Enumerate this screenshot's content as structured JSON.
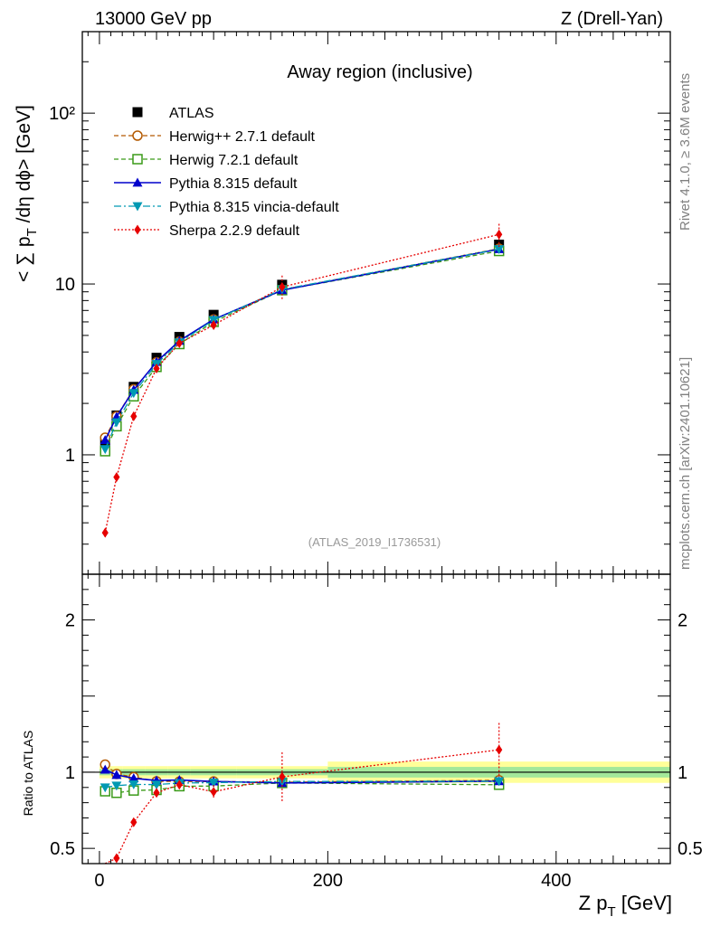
{
  "header": {
    "left": "13000 GeV pp",
    "right": "Z (Drell-Yan)"
  },
  "side_text": {
    "rivet": "Rivet 4.1.0, ≥ 3.6M events",
    "mcplots": "mcplots.cern.ch [arXiv:2401.10621]"
  },
  "analysis_id": "(ATLAS_2019_I1736531)",
  "chart_data": {
    "type": "scatter",
    "title": "Away region (inclusive)",
    "xlabel": "Z p_T [GeV]",
    "ylabel": "<∑ p_T /dη dϕ> [GeV]",
    "ratio_ylabel": "Ratio to ATLAS",
    "xlim": [
      -15,
      500
    ],
    "ylim": [
      0.2,
      300
    ],
    "ylog": true,
    "ratio_ylim": [
      0.4,
      2.3
    ],
    "x_ticks": [
      0,
      200,
      400
    ],
    "x_tick_labels": [
      "0",
      "200",
      "400"
    ],
    "y_ticks": [
      1,
      10,
      100
    ],
    "y_tick_labels": [
      "1",
      "10",
      "10²"
    ],
    "ratio_ticks": [
      0.5,
      1,
      2
    ],
    "ratio_tick_labels": [
      "0.5",
      "1",
      "2"
    ],
    "x": [
      5,
      15,
      30,
      50,
      70,
      100,
      160,
      350
    ],
    "bin_edges": [
      0,
      10,
      20,
      40,
      60,
      80,
      120,
      200,
      500
    ],
    "reference": {
      "name": "ATLAS",
      "values": [
        1.2,
        1.7,
        2.5,
        3.7,
        4.9,
        6.6,
        9.9,
        17
      ],
      "band_inner": [
        0.02,
        0.02,
        0.02,
        0.02,
        0.02,
        0.02,
        0.02,
        0.035
      ],
      "band_outer": [
        0.04,
        0.04,
        0.04,
        0.04,
        0.04,
        0.04,
        0.04,
        0.07
      ]
    },
    "series": [
      {
        "name": "Herwig++ 2.7.1 default",
        "color": "#b35900",
        "dash": "5,3",
        "marker": "open-circle",
        "values": [
          1.26,
          1.68,
          2.42,
          3.48,
          4.6,
          6.2,
          9.25,
          16.1
        ],
        "errors": [
          0,
          0,
          0,
          0,
          0,
          0,
          0,
          0
        ]
      },
      {
        "name": "Herwig 7.2.1 default",
        "color": "#3a9a18",
        "dash": "5,3",
        "marker": "open-square",
        "values": [
          1.05,
          1.47,
          2.2,
          3.27,
          4.45,
          6.0,
          9.2,
          15.6
        ],
        "errors": [
          0,
          0,
          0,
          0,
          0,
          0,
          0,
          0
        ]
      },
      {
        "name": "Pythia 8.315 default",
        "color": "#0000cc",
        "dash": "",
        "marker": "triangle-up",
        "values": [
          1.22,
          1.67,
          2.4,
          3.5,
          4.65,
          6.2,
          9.2,
          16.0
        ],
        "errors": [
          0,
          0,
          0,
          0,
          0,
          0,
          0,
          0
        ]
      },
      {
        "name": "Pythia 8.315 vincia-default",
        "color": "#0099b3",
        "dash": "8,3,2,3",
        "marker": "triangle-down",
        "values": [
          1.08,
          1.55,
          2.3,
          3.4,
          4.55,
          6.15,
          9.3,
          16.0
        ],
        "errors": [
          0,
          0,
          0,
          0,
          0,
          0,
          0,
          0
        ]
      },
      {
        "name": "Sherpa 2.2.9 default",
        "color": "#e60000",
        "dash": "2,2",
        "marker": "diamond",
        "values": [
          0.35,
          0.74,
          1.68,
          3.2,
          4.5,
          5.75,
          9.6,
          19.5
        ],
        "errors": [
          0.02,
          0.04,
          0.06,
          0.1,
          0.12,
          0.3,
          1.6,
          3.0
        ]
      }
    ]
  }
}
